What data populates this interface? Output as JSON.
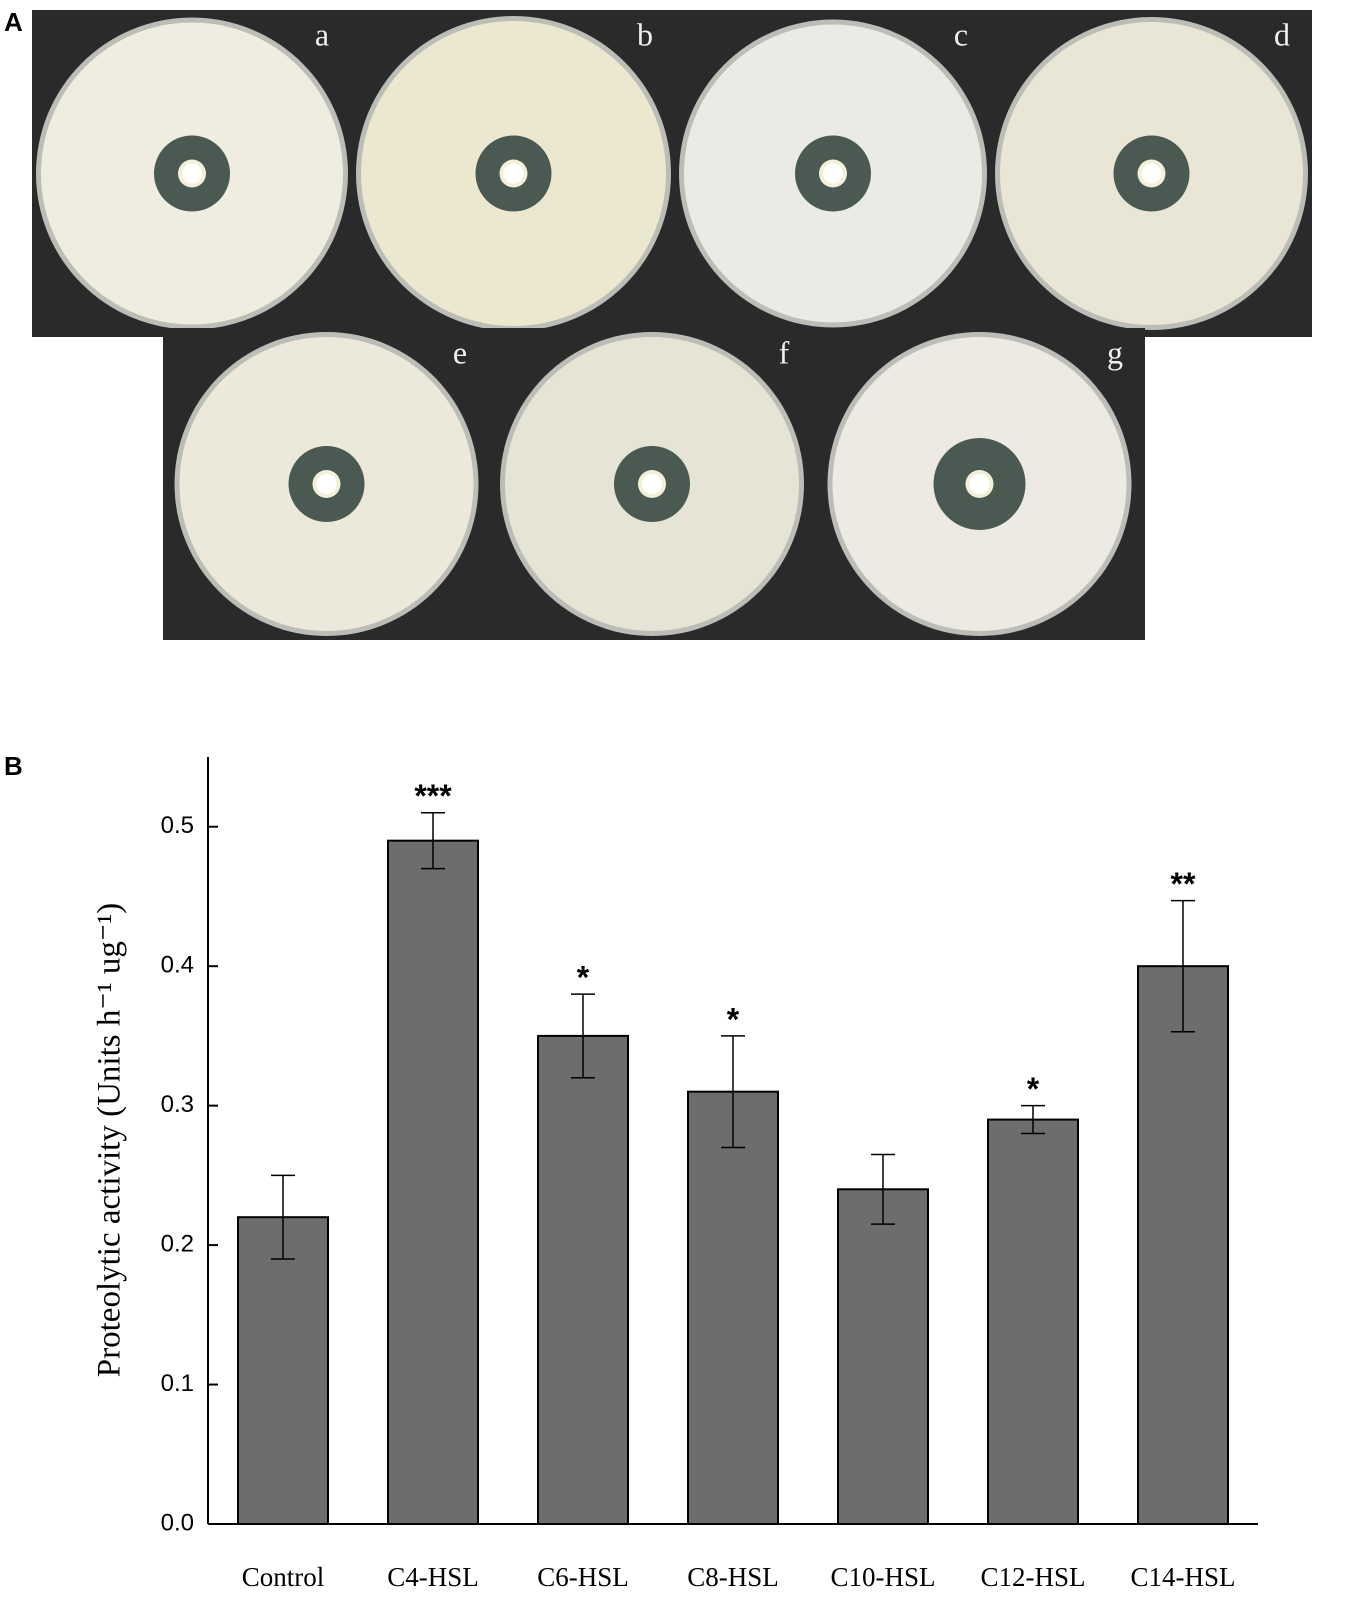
{
  "figure": {
    "panel_a_label": "A",
    "panel_b_label": "B",
    "plate_labels": [
      "a",
      "b",
      "c",
      "d",
      "e",
      "f",
      "g"
    ]
  },
  "chart_data": {
    "type": "bar",
    "y_label": "Proteolytic activity (Units h⁻¹ ug⁻¹)",
    "categories": [
      "Control",
      "C4-HSL",
      "C6-HSL",
      "C8-HSL",
      "C10-HSL",
      "C12-HSL",
      "C14-HSL"
    ],
    "values": [
      0.22,
      0.49,
      0.35,
      0.31,
      0.24,
      0.29,
      0.4
    ],
    "errors": [
      0.03,
      0.02,
      0.03,
      0.04,
      0.025,
      0.01,
      0.047
    ],
    "significance": [
      null,
      "***",
      "*",
      "*",
      null,
      "*",
      "**"
    ],
    "color": "#6d6d6d",
    "ylim": [
      0,
      0.55
    ],
    "yticks": [
      {
        "value": 0,
        "label": "0.0"
      },
      0.1,
      0.2,
      0.3,
      0.4,
      0.5
    ]
  }
}
